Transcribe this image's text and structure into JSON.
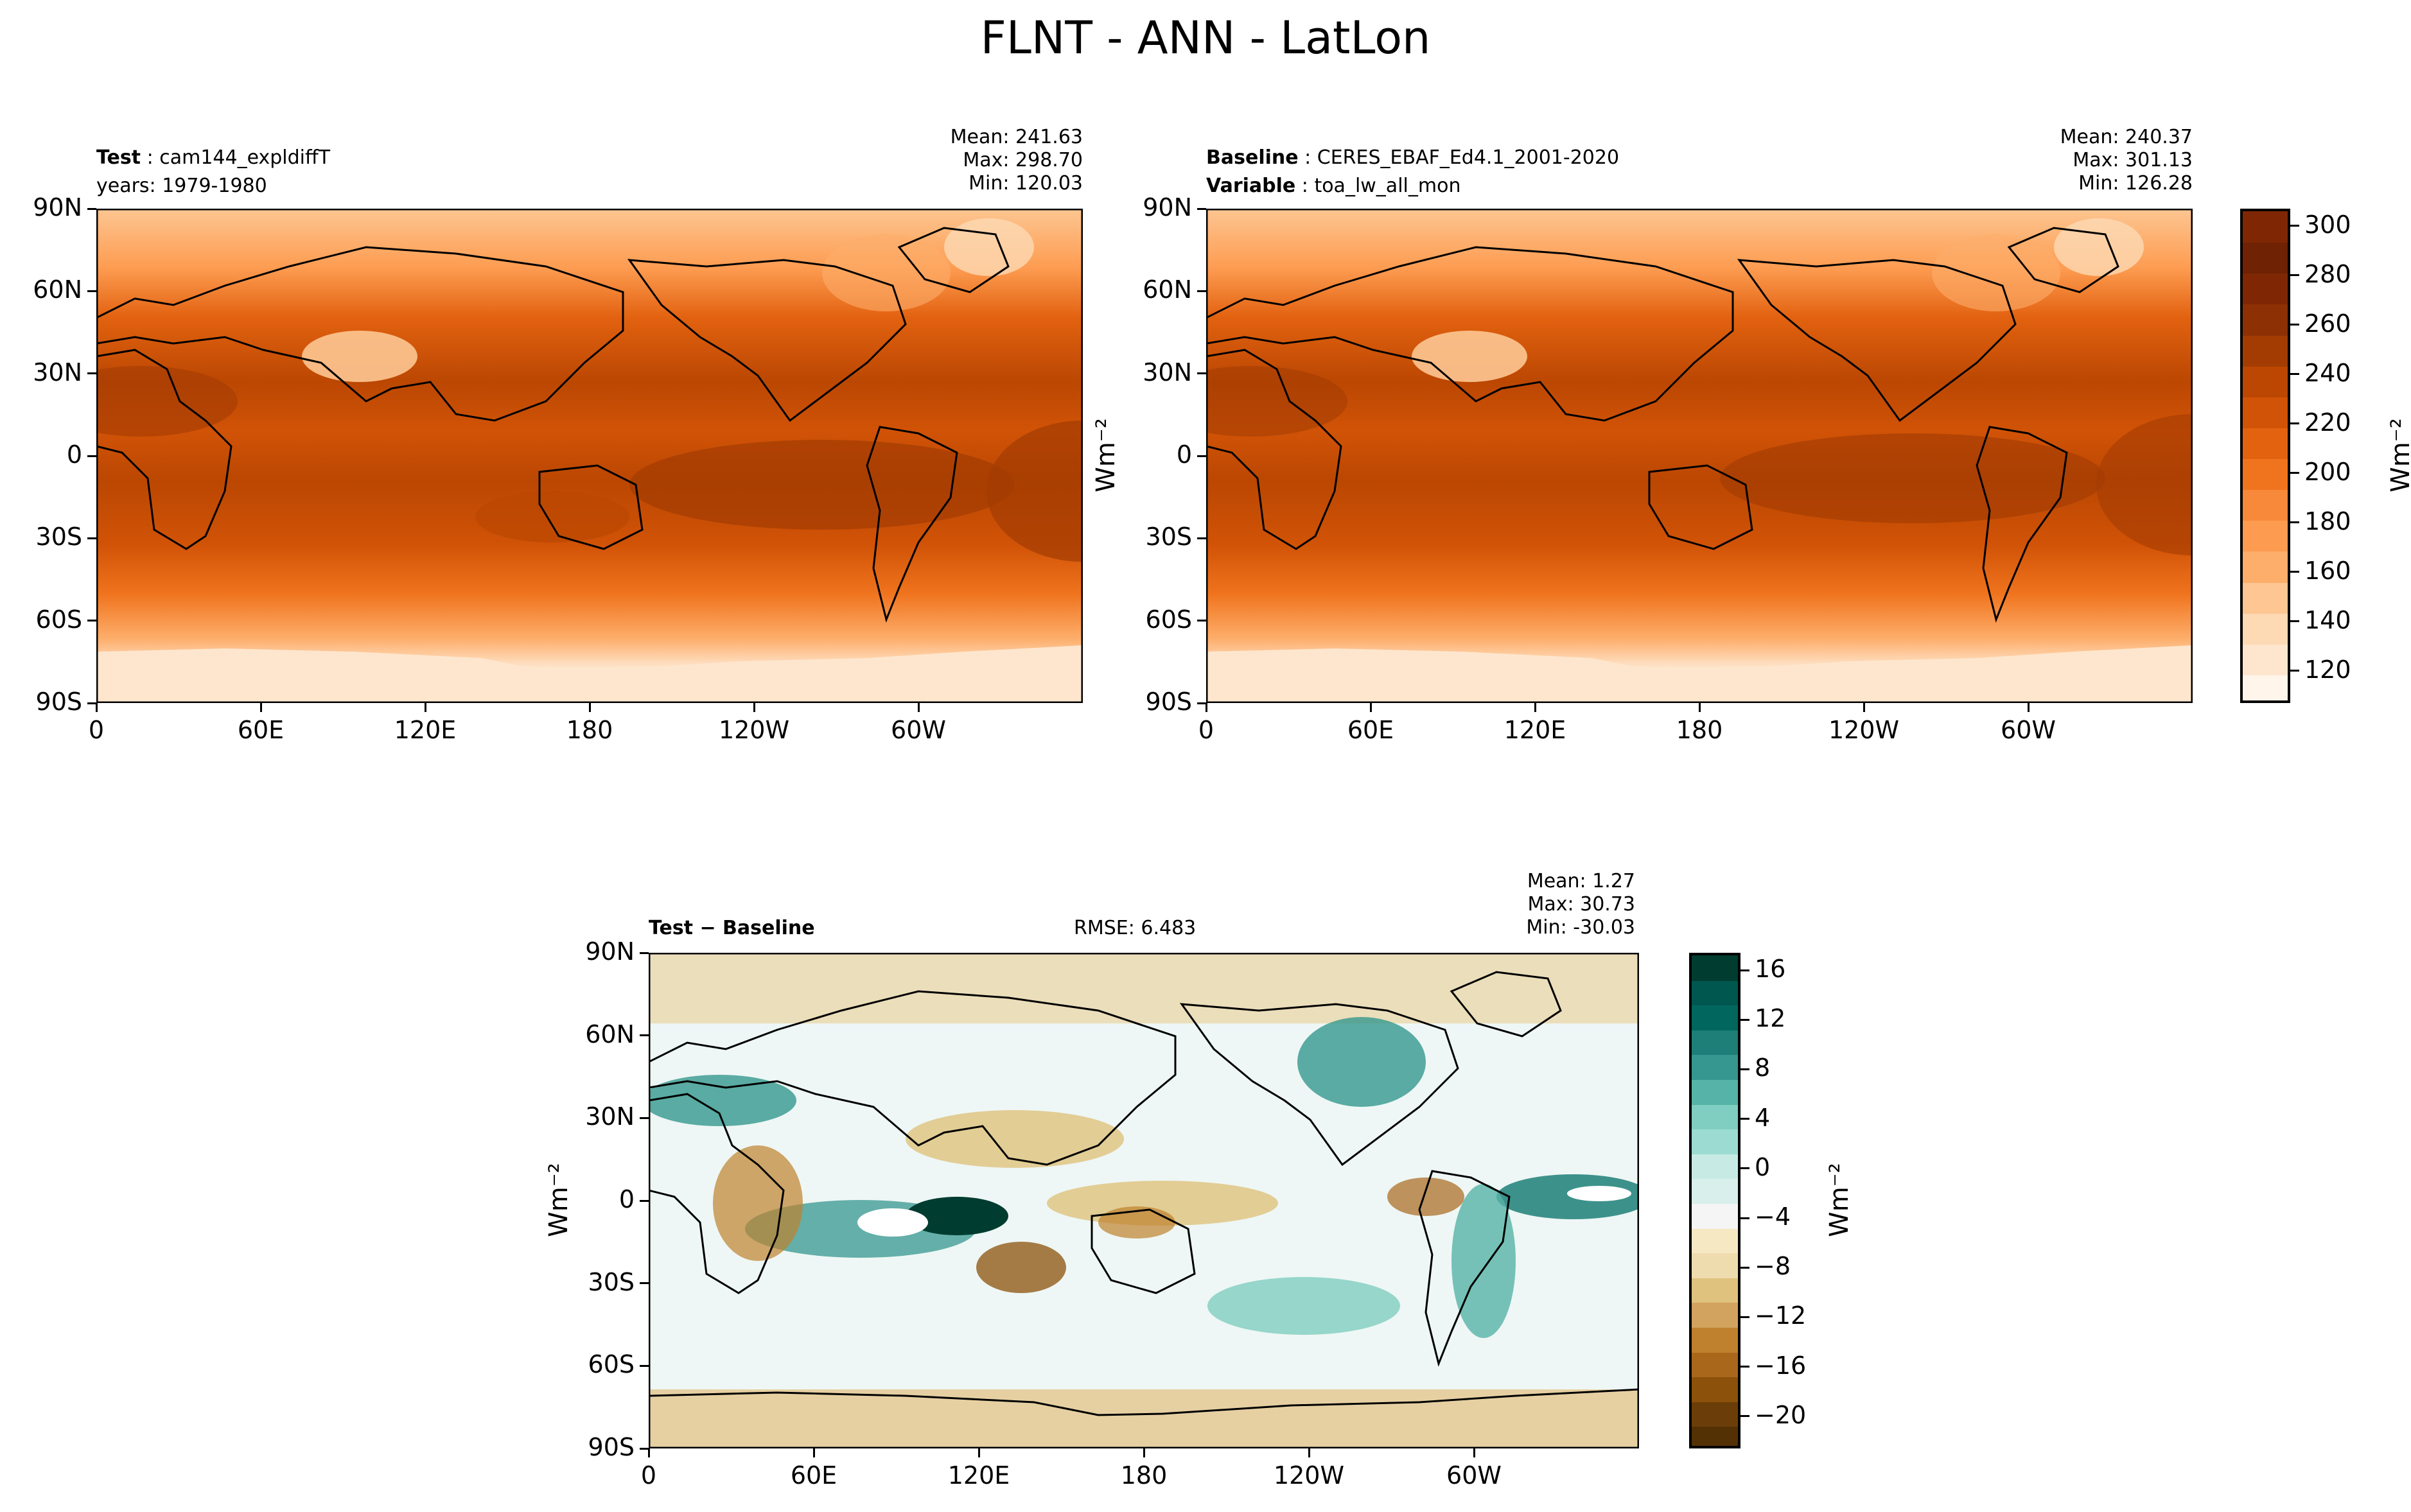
{
  "figure_title": "FLNT - ANN - LatLon",
  "panels": {
    "test": {
      "label_bold": "Test",
      "label_text": "cam144_expldiffT",
      "line2": "years: 1979-1980",
      "stats": [
        "Mean: 241.63",
        "Max: 298.70",
        "Min: 120.03"
      ]
    },
    "baseline": {
      "label_bold": "Baseline",
      "label_text": "CERES_EBAF_Ed4.1_2001-2020",
      "line2_bold": "Variable",
      "line2_text": "toa_lw_all_mon",
      "stats": [
        "Mean: 240.37",
        "Max: 301.13",
        "Min: 126.28"
      ]
    },
    "diff": {
      "label_bold": "Test − Baseline",
      "rmse": "RMSE: 6.483",
      "stats": [
        "Mean:  1.27",
        "Max: 30.73",
        "Min: -30.03"
      ]
    }
  },
  "axes": {
    "lat_ticks": [
      "90N",
      "60N",
      "30N",
      "0",
      "30S",
      "60S",
      "90S"
    ],
    "lon_ticks": [
      "0",
      "60E",
      "120E",
      "180",
      "120W",
      "60W"
    ]
  },
  "units_label": "Wm⁻²",
  "colorbar_main": {
    "ticks": [
      "300",
      "280",
      "260",
      "240",
      "220",
      "200",
      "180",
      "160",
      "140",
      "120"
    ],
    "colors": [
      "#fff5eb",
      "#fee6ce",
      "#fdd9b4",
      "#fdc692",
      "#fdae6b",
      "#fd9c51",
      "#f8883a",
      "#f0741e",
      "#e26210",
      "#d15307",
      "#bb4702",
      "#a33c03",
      "#8d3104",
      "#7f2704",
      "#6f2204",
      "#7f2704"
    ]
  },
  "colorbar_diff": {
    "ticks": [
      "16",
      "12",
      "8",
      "4",
      "0",
      "−4",
      "−8",
      "−12",
      "−16",
      "−20"
    ],
    "colors": [
      "#543005",
      "#6b3e09",
      "#8c510a",
      "#a9671c",
      "#bf812d",
      "#d2a35e",
      "#dfc27d",
      "#eedcaf",
      "#f6e8c3",
      "#f5f5f5",
      "#d8efeb",
      "#c7eae5",
      "#9cdbd1",
      "#80cdc1",
      "#56b3a7",
      "#35978f",
      "#1d7f78",
      "#01665e",
      "#00574f",
      "#003c30"
    ]
  },
  "chart_data": [
    {
      "type": "heatmap",
      "title": "Test: cam144_expldiffT",
      "xlabel": "",
      "ylabel": "",
      "x_ticks": [
        "0",
        "60E",
        "120E",
        "180",
        "120W",
        "60W"
      ],
      "y_ticks": [
        "90N",
        "60N",
        "30N",
        "0",
        "30S",
        "60S",
        "90S"
      ],
      "xlim": [
        0,
        360
      ],
      "ylim": [
        -90,
        90
      ],
      "colorbar_range": [
        120,
        310
      ],
      "stats": {
        "mean": 241.63,
        "max": 298.7,
        "min": 120.03
      }
    },
    {
      "type": "heatmap",
      "title": "Baseline: CERES_EBAF_Ed4.1_2001-2020",
      "xlabel": "",
      "ylabel": "",
      "x_ticks": [
        "0",
        "60E",
        "120E",
        "180",
        "120W",
        "60W"
      ],
      "y_ticks": [
        "90N",
        "60N",
        "30N",
        "0",
        "30S",
        "60S",
        "90S"
      ],
      "xlim": [
        0,
        360
      ],
      "ylim": [
        -90,
        90
      ],
      "colorbar_ticks": [
        120,
        140,
        160,
        180,
        200,
        220,
        240,
        260,
        280,
        300
      ],
      "colorbar_label": "Wm⁻²",
      "stats": {
        "mean": 240.37,
        "max": 301.13,
        "min": 126.28
      }
    },
    {
      "type": "heatmap",
      "title": "Test − Baseline",
      "xlabel": "",
      "ylabel": "Wm⁻²",
      "x_ticks": [
        "0",
        "60E",
        "120E",
        "180",
        "120W",
        "60W"
      ],
      "y_ticks": [
        "90N",
        "60N",
        "30N",
        "0",
        "30S",
        "60S",
        "90S"
      ],
      "xlim": [
        0,
        360
      ],
      "ylim": [
        -90,
        90
      ],
      "colorbar_ticks": [
        -20,
        -16,
        -12,
        -8,
        -4,
        0,
        4,
        8,
        12,
        16
      ],
      "colorbar_label": "Wm⁻²",
      "rmse": 6.483,
      "stats": {
        "mean": 1.27,
        "max": 30.73,
        "min": -30.03
      }
    }
  ]
}
